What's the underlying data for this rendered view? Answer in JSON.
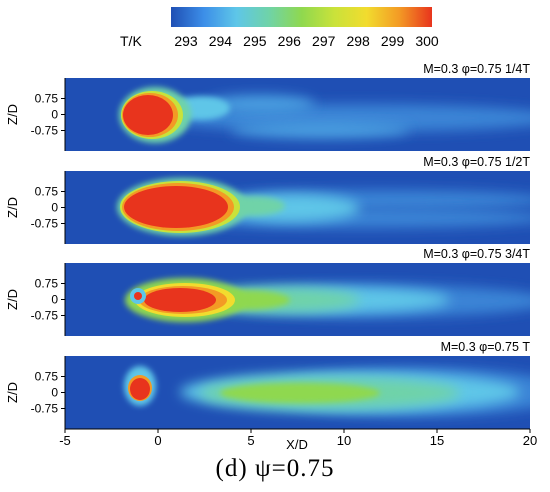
{
  "caption": "(d) ψ=0.75",
  "colorbar": {
    "label": "T/K",
    "range": [
      293,
      300
    ],
    "ticks": [
      293,
      294,
      295,
      296,
      297,
      298,
      299,
      300
    ],
    "colors": [
      "#1f4fb4",
      "#3c8ee8",
      "#5ec6e8",
      "#6fd3a8",
      "#8fd84f",
      "#c9e23a",
      "#f2dc2e",
      "#f39a25",
      "#e8341d"
    ]
  },
  "chart_data": {
    "type": "heatmap",
    "xlabel": "X/D",
    "ylabel": "Z/D",
    "xlim": [
      -5,
      20
    ],
    "xticks": [
      -5,
      0,
      5,
      10,
      15,
      20
    ],
    "yticks": [
      "0.75",
      "0",
      "-0.75"
    ],
    "ylim": [
      -1.2,
      1.2
    ],
    "panels": [
      {
        "title": "M=0.3 φ=0.75 1/4T",
        "phase": "1/4T",
        "peak_K": 300,
        "hot_core": {
          "x_from": -1.8,
          "x_to": 0.9,
          "z_center": 0.1
        },
        "wake_peak_K": 295.5
      },
      {
        "title": "M=0.3 φ=0.75 1/2T",
        "phase": "1/2T",
        "peak_K": 300,
        "hot_core": {
          "x_from": -1.8,
          "x_to": 2.6,
          "z_center": 0.05
        },
        "wake_peak_K": 295.8
      },
      {
        "title": "M=0.3 φ=0.75 3/4T",
        "phase": "3/4T",
        "peak_K": 300,
        "hot_core": {
          "x_from": -1.5,
          "x_to": 3.5,
          "z_center": -0.05
        },
        "wake_peak_K": 296.5
      },
      {
        "title": "M=0.3 φ=0.75 T",
        "phase": "T",
        "peak_K": 300,
        "hot_core": {
          "x_from": -1.6,
          "x_to": -0.6,
          "z_center": -0.1
        },
        "wake_peak_K": 296.8
      }
    ]
  }
}
